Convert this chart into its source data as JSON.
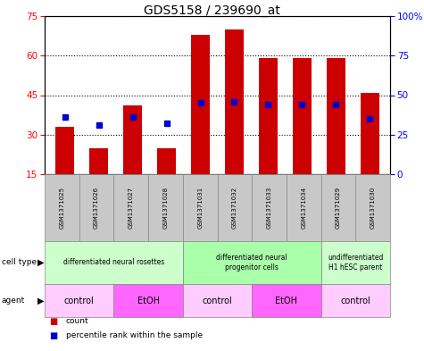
{
  "title": "GDS5158 / 239690_at",
  "samples": [
    "GSM1371025",
    "GSM1371026",
    "GSM1371027",
    "GSM1371028",
    "GSM1371031",
    "GSM1371032",
    "GSM1371033",
    "GSM1371034",
    "GSM1371029",
    "GSM1371030"
  ],
  "counts": [
    33,
    25,
    41,
    25,
    68,
    70,
    59,
    59,
    59,
    46
  ],
  "percentiles": [
    36,
    31,
    36,
    32,
    45,
    46,
    44,
    44,
    44,
    35
  ],
  "ylim_left": [
    15,
    75
  ],
  "yticks_left": [
    15,
    30,
    45,
    60,
    75
  ],
  "ylim_right": [
    0,
    100
  ],
  "yticks_right": [
    0,
    25,
    50,
    75,
    100
  ],
  "ytick_labels_right": [
    "0",
    "25",
    "50",
    "75",
    "100%"
  ],
  "bar_color": "#cc0000",
  "dot_color": "#0000cc",
  "cell_type_groups": [
    {
      "label": "differentiated neural rosettes",
      "start": 0,
      "end": 3,
      "color": "#ccffcc"
    },
    {
      "label": "differentiated neural\nprogenitor cells",
      "start": 4,
      "end": 7,
      "color": "#aaffaa"
    },
    {
      "label": "undifferentiated\nH1 hESC parent",
      "start": 8,
      "end": 9,
      "color": "#ccffcc"
    }
  ],
  "agent_groups": [
    {
      "label": "control",
      "start": 0,
      "end": 1,
      "color": "#ffccff"
    },
    {
      "label": "EtOH",
      "start": 2,
      "end": 3,
      "color": "#ff66ff"
    },
    {
      "label": "control",
      "start": 4,
      "end": 5,
      "color": "#ffccff"
    },
    {
      "label": "EtOH",
      "start": 6,
      "end": 7,
      "color": "#ff66ff"
    },
    {
      "label": "control",
      "start": 8,
      "end": 9,
      "color": "#ffccff"
    }
  ],
  "bar_width": 0.55
}
